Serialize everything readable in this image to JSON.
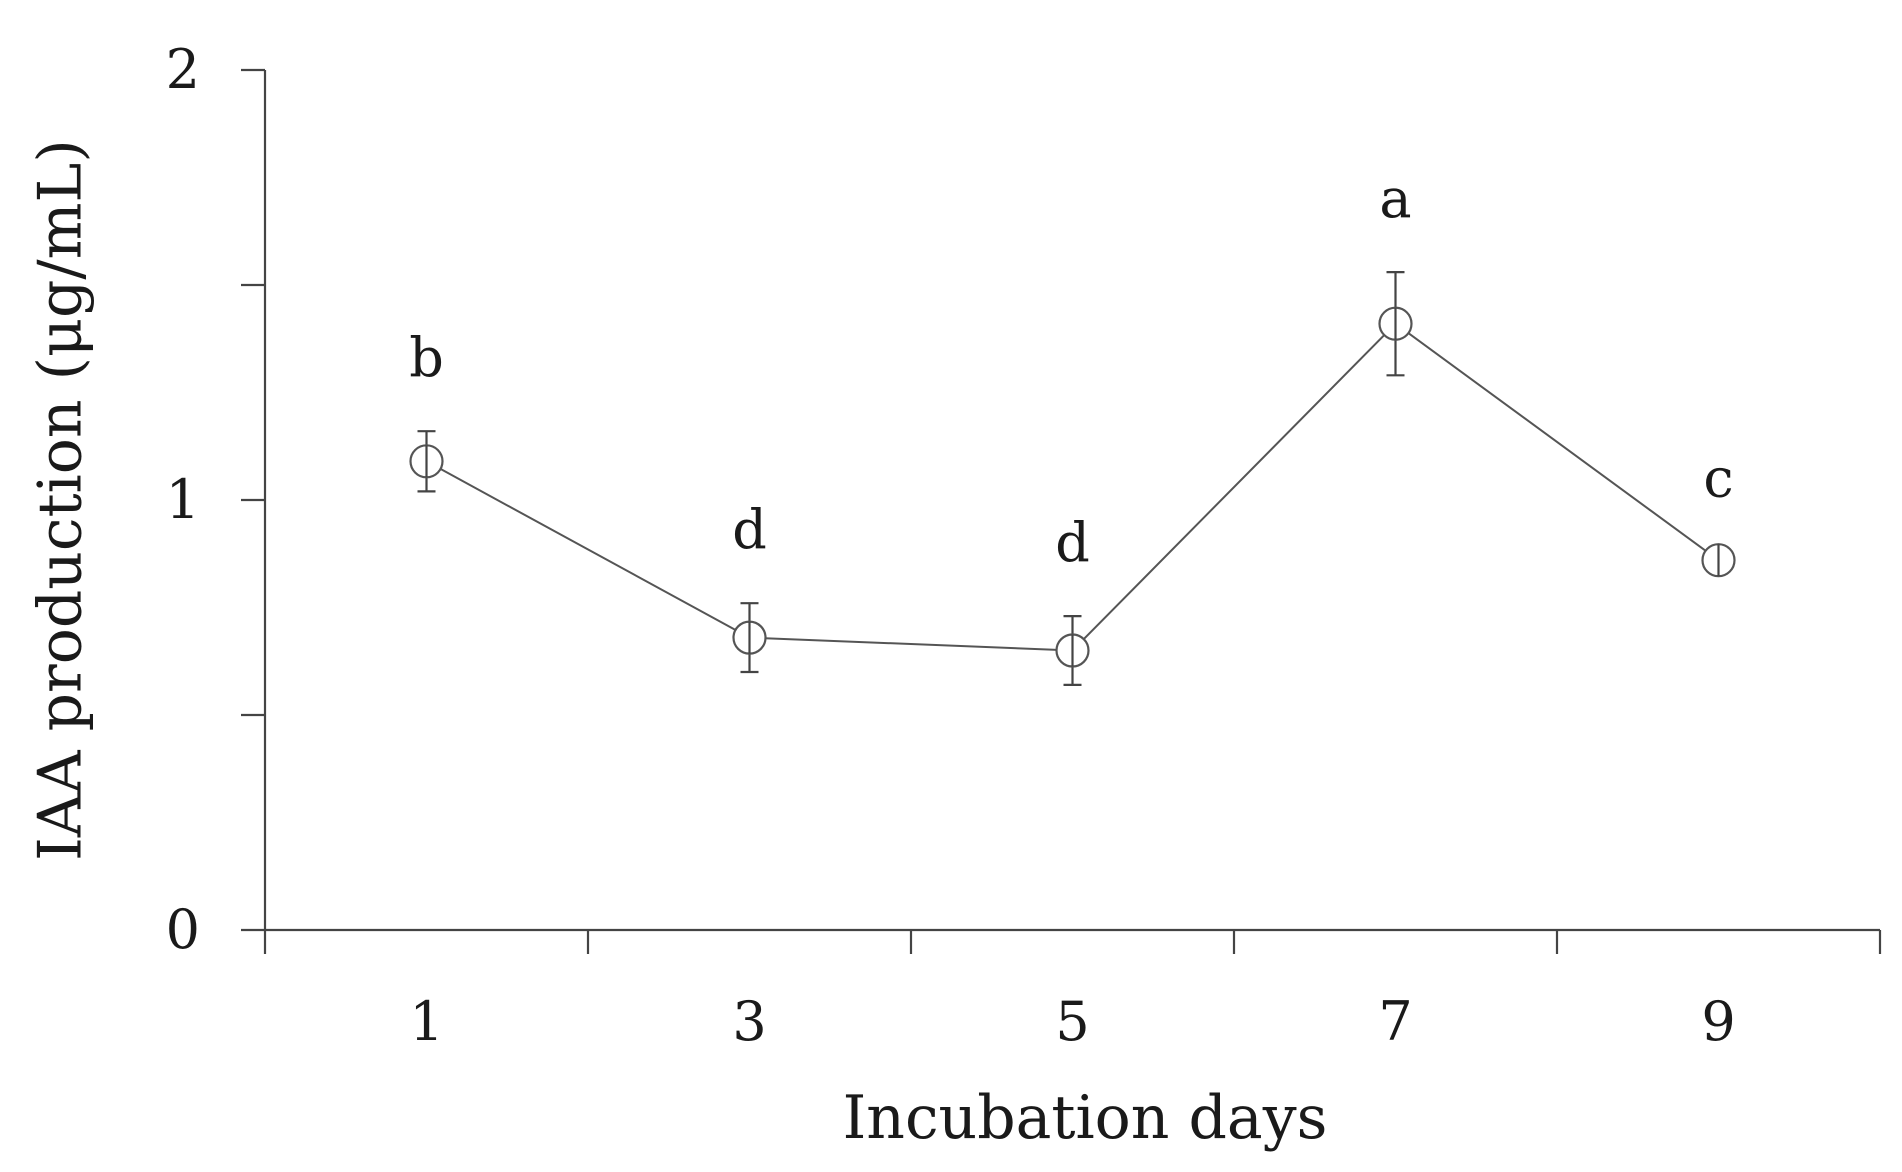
{
  "chart_data": {
    "type": "line",
    "title": "",
    "xlabel": "Incubation days",
    "ylabel": "IAA production (μg/mL)",
    "categories": [
      "1",
      "3",
      "5",
      "7",
      "9"
    ],
    "x_domain": [
      0,
      10
    ],
    "ylim": [
      0,
      2
    ],
    "y_major_ticks": [
      0,
      1,
      2
    ],
    "y_minor_ticks": [
      0.5,
      1.5
    ],
    "x_ticks_unlabeled": [
      0,
      2,
      4,
      6,
      8,
      10
    ],
    "x_tick_labels": [
      "1",
      "3",
      "5",
      "7",
      "9"
    ],
    "grid": false,
    "legend": "none",
    "marker": "open-circle",
    "line_color": "#555555",
    "series": [
      {
        "x": [
          1,
          3,
          5,
          7,
          9
        ],
        "values": [
          1.09,
          0.68,
          0.65,
          1.41,
          0.86
        ],
        "error": [
          0.07,
          0.08,
          0.08,
          0.12,
          0.02
        ],
        "significance": [
          "b",
          "d",
          "d",
          "a",
          "c"
        ]
      }
    ]
  }
}
